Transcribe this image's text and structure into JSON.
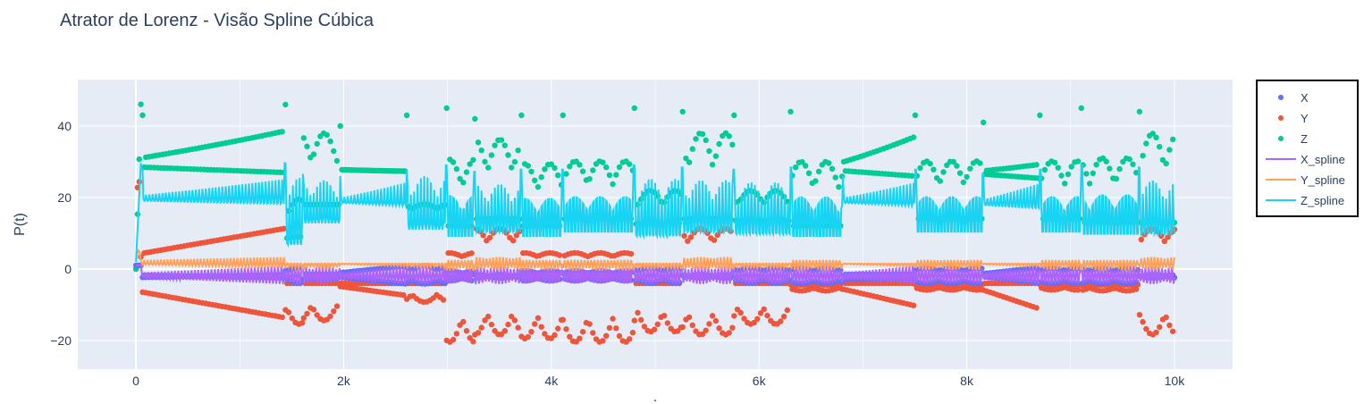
{
  "chart_data": {
    "type": "line",
    "title": "Atrator de Lorenz - Visão Spline Cúbica",
    "xlabel": ".",
    "ylabel": "P(t)",
    "xlim": [
      -560,
      10560
    ],
    "ylim": [
      -28,
      53
    ],
    "x_ticks": [
      {
        "value": 0,
        "label": "0"
      },
      {
        "value": 2000,
        "label": "2k"
      },
      {
        "value": 4000,
        "label": "4k"
      },
      {
        "value": 6000,
        "label": "6k"
      },
      {
        "value": 8000,
        "label": "8k"
      },
      {
        "value": 10000,
        "label": "10k"
      }
    ],
    "y_ticks": [
      {
        "value": -20,
        "label": "−20"
      },
      {
        "value": 0,
        "label": "0"
      },
      {
        "value": 20,
        "label": "20"
      },
      {
        "value": 40,
        "label": "40"
      }
    ],
    "grid": true,
    "legend_position": "top-right",
    "background_color": "#e5ecf6",
    "series": [
      {
        "name": "X",
        "mode": "markers",
        "color": "#636efa"
      },
      {
        "name": "Y",
        "mode": "markers",
        "color": "#ef553b"
      },
      {
        "name": "Z",
        "mode": "markers",
        "color": "#00cc96"
      },
      {
        "name": "X_spline",
        "mode": "lines",
        "color": "#ab63fa"
      },
      {
        "name": "Y_spline",
        "mode": "lines",
        "color": "#ffa15a"
      },
      {
        "name": "Z_spline",
        "mode": "lines",
        "color": "#19d3f3"
      }
    ],
    "events": [
      {
        "t0": 0,
        "t1": 50,
        "zmax": 48,
        "zmin": 27,
        "ymin": -9
      },
      {
        "t0": 50,
        "t1": 1430,
        "zmax": 40,
        "zmin": 27,
        "ymin": -14,
        "growing": true
      },
      {
        "t0": 1430,
        "t1": 1600,
        "zmax": 43,
        "zmin": 8,
        "ymin": -20
      },
      {
        "t0": 1600,
        "t1": 1960,
        "zmax": 38,
        "zmin": 18,
        "ymin": -19
      },
      {
        "t0": 1960,
        "t1": 2600,
        "zmax": 37,
        "zmin": 26,
        "ymin": -13,
        "growing": true
      },
      {
        "t0": 2600,
        "t1": 2980,
        "zmax": 40,
        "zmin": 15,
        "ymin": -18
      },
      {
        "t0": 2980,
        "t1": 3250,
        "zmax": 42,
        "zmin": 12,
        "ymin": -21
      },
      {
        "t0": 3250,
        "t1": 3700,
        "zmax": 39,
        "zmin": 14,
        "ymin": -19
      },
      {
        "t0": 3700,
        "t1": 4100,
        "zmax": 40,
        "zmin": 12,
        "ymin": -20
      },
      {
        "t0": 4100,
        "t1": 4790,
        "zmax": 40,
        "zmin": 14,
        "ymin": -21
      },
      {
        "t0": 4790,
        "t1": 5250,
        "zmax": 42,
        "zmin": 12,
        "ymin": -23
      },
      {
        "t0": 5250,
        "t1": 5750,
        "zmax": 41,
        "zmin": 14,
        "ymin": -19
      },
      {
        "t0": 5750,
        "t1": 6300,
        "zmax": 40,
        "zmin": 13,
        "ymin": -20
      },
      {
        "t0": 6300,
        "t1": 6800,
        "zmax": 41,
        "zmin": 12,
        "ymin": -21
      },
      {
        "t0": 6800,
        "t1": 7500,
        "zmax": 37,
        "zmin": 26,
        "ymin": -13,
        "growing": true
      },
      {
        "t0": 7500,
        "t1": 8150,
        "zmax": 40,
        "zmin": 14,
        "ymin": -19
      },
      {
        "t0": 8150,
        "t1": 8700,
        "zmax": 38,
        "zmin": 25,
        "ymin": -14,
        "growing": true
      },
      {
        "t0": 8700,
        "t1": 9100,
        "zmax": 40,
        "zmin": 14,
        "ymin": -19
      },
      {
        "t0": 9100,
        "t1": 9650,
        "zmax": 42,
        "zmin": 13,
        "ymin": -21
      },
      {
        "t0": 9650,
        "t1": 10000,
        "zmax": 41,
        "zmin": 13,
        "ymin": -19
      }
    ]
  }
}
